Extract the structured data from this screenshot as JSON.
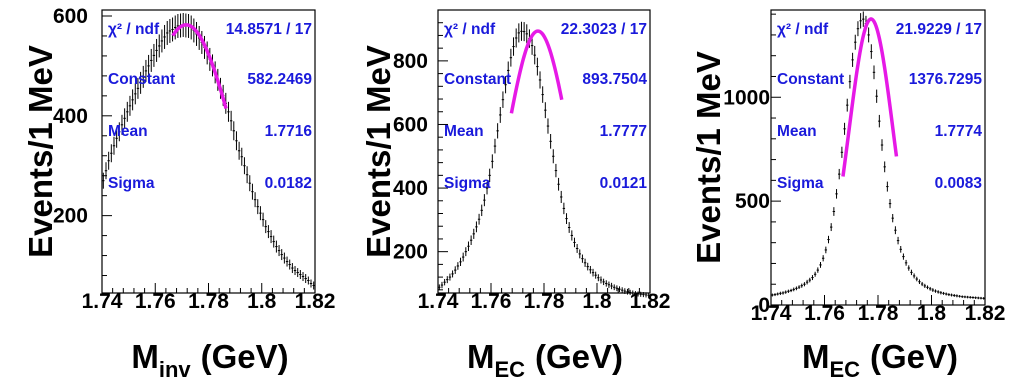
{
  "colors": {
    "fit": "#e619e6",
    "stats": "#1a1adb",
    "data": "#000000",
    "frame": "#000000"
  },
  "chart_data": [
    {
      "type": "scatter",
      "xlabel": "M",
      "xlabel_sub": "inv",
      "xlabel_unit": "(GeV)",
      "ylabel": "Events/1 MeV",
      "xlim": [
        1.74,
        1.82
      ],
      "ylim": [
        45,
        612
      ],
      "x_ticks": [
        1.74,
        1.76,
        1.78,
        1.8,
        1.82
      ],
      "x_tick_labels": [
        "1.74",
        "1.76",
        "1.78",
        "1.8",
        "1.82"
      ],
      "y_ticks": [
        200,
        400,
        600
      ],
      "y_tick_labels": [
        "200",
        "400",
        "600"
      ],
      "fit": {
        "function": "gaus",
        "constant": 582.2469,
        "mean": 1.7716,
        "sigma": 0.0182,
        "range": [
          1.7666,
          1.7866
        ]
      },
      "stats": [
        {
          "name": "χ² / ndf",
          "value": "14.8571 / 17"
        },
        {
          "name": "Constant",
          "value": "582.2469"
        },
        {
          "name": "Mean",
          "value": "1.7716"
        },
        {
          "name": "Sigma",
          "value": "0.0182"
        }
      ],
      "points": {
        "x": [
          1.7405,
          1.7415,
          1.7425,
          1.7435,
          1.7445,
          1.7455,
          1.7465,
          1.7475,
          1.7485,
          1.7495,
          1.7505,
          1.7515,
          1.7525,
          1.7535,
          1.7545,
          1.7555,
          1.7565,
          1.7575,
          1.7585,
          1.7595,
          1.7605,
          1.7615,
          1.7625,
          1.7635,
          1.7645,
          1.7655,
          1.7665,
          1.7675,
          1.7685,
          1.7695,
          1.7705,
          1.7715,
          1.7725,
          1.7735,
          1.7745,
          1.7755,
          1.7765,
          1.7775,
          1.7785,
          1.7795,
          1.7805,
          1.7815,
          1.7825,
          1.7835,
          1.7845,
          1.7855,
          1.7865,
          1.7875,
          1.7885,
          1.7895,
          1.7905,
          1.7915,
          1.7925,
          1.7935,
          1.7945,
          1.7955,
          1.7965,
          1.7975,
          1.7985,
          1.7995,
          1.8005,
          1.8015,
          1.8025,
          1.8035,
          1.8045,
          1.8055,
          1.8065,
          1.8075,
          1.8085,
          1.8095,
          1.8105,
          1.8115,
          1.8125,
          1.8135,
          1.8145,
          1.8155,
          1.8165,
          1.8175,
          1.8185,
          1.8195
        ],
        "y": [
          270,
          290,
          310,
          325,
          340,
          355,
          368,
          382,
          395,
          408,
          420,
          432,
          444,
          455,
          466,
          478,
          490,
          500,
          511,
          521,
          531,
          540,
          550,
          558,
          566,
          570,
          573,
          577,
          580,
          581,
          582,
          581,
          580,
          577,
          571,
          564,
          556,
          547,
          537,
          526,
          513,
          501,
          487,
          472,
          455,
          441,
          425,
          408,
          390,
          370,
          350,
          330,
          318,
          300,
          282,
          265,
          248,
          232,
          218,
          205,
          192,
          178,
          168,
          158,
          148,
          138,
          130,
          122,
          115,
          108,
          102,
          95,
          90,
          86,
          82,
          78,
          74,
          70,
          64,
          60
        ],
        "yerr": [
          16,
          17,
          18,
          18,
          18,
          19,
          19,
          20,
          20,
          20,
          20,
          21,
          21,
          21,
          22,
          22,
          22,
          22,
          23,
          23,
          23,
          23,
          23,
          24,
          24,
          24,
          24,
          24,
          24,
          24,
          24,
          24,
          24,
          24,
          24,
          24,
          24,
          23,
          23,
          23,
          23,
          22,
          22,
          22,
          21,
          21,
          21,
          20,
          20,
          19,
          19,
          18,
          18,
          17,
          17,
          16,
          16,
          15,
          15,
          14,
          14,
          13,
          13,
          13,
          12,
          12,
          11,
          11,
          11,
          10,
          10,
          10,
          9,
          9,
          9,
          9,
          9,
          8,
          8,
          8
        ]
      }
    },
    {
      "type": "scatter",
      "xlabel": "M",
      "xlabel_sub": "EC",
      "xlabel_unit": "(GeV)",
      "ylabel": "Events/1 MeV",
      "xlim": [
        1.74,
        1.82
      ],
      "ylim": [
        70,
        960
      ],
      "x_ticks": [
        1.74,
        1.76,
        1.78,
        1.8,
        1.82
      ],
      "x_tick_labels": [
        "1.74",
        "1.76",
        "1.78",
        "1.8",
        "1.82"
      ],
      "y_ticks": [
        200,
        400,
        600,
        800
      ],
      "y_tick_labels": [
        "200",
        "400",
        "600",
        "800"
      ],
      "fit": {
        "function": "gaus",
        "constant": 893.7504,
        "mean": 1.7777,
        "sigma": 0.0121,
        "range": [
          1.7677,
          1.7867
        ]
      },
      "stats": [
        {
          "name": "χ² / ndf",
          "value": "22.3023 / 17"
        },
        {
          "name": "Constant",
          "value": "893.7504"
        },
        {
          "name": "Mean",
          "value": "1.7777"
        },
        {
          "name": "Sigma",
          "value": "0.0121"
        }
      ],
      "points": {
        "x": [
          1.7405,
          1.7415,
          1.7425,
          1.7435,
          1.7445,
          1.7455,
          1.7465,
          1.7475,
          1.7485,
          1.7495,
          1.7505,
          1.7515,
          1.7525,
          1.7535,
          1.7545,
          1.7555,
          1.7565,
          1.7575,
          1.7585,
          1.7595,
          1.7605,
          1.7615,
          1.7625,
          1.7635,
          1.7645,
          1.7655,
          1.7665,
          1.7675,
          1.7685,
          1.7695,
          1.7705,
          1.7715,
          1.7725,
          1.7735,
          1.7745,
          1.7755,
          1.7765,
          1.7775,
          1.7785,
          1.7795,
          1.7805,
          1.7815,
          1.7825,
          1.7835,
          1.7845,
          1.7855,
          1.7865,
          1.7875,
          1.7885,
          1.7895,
          1.7905,
          1.7915,
          1.7925,
          1.7935,
          1.7945,
          1.7955,
          1.7965,
          1.7975,
          1.7985,
          1.7995,
          1.8005,
          1.8015,
          1.8025,
          1.8035,
          1.8045,
          1.8055,
          1.8065,
          1.8075,
          1.8085,
          1.8095,
          1.8105,
          1.8115,
          1.8125,
          1.8135,
          1.8145,
          1.8155,
          1.8165,
          1.8175,
          1.8185,
          1.8195
        ],
        "y": [
          88,
          95,
          104,
          112,
          120,
          130,
          142,
          155,
          168,
          183,
          200,
          217,
          236,
          256,
          278,
          302,
          330,
          362,
          400,
          440,
          484,
          532,
          580,
          630,
          678,
          725,
          770,
          810,
          845,
          872,
          888,
          893,
          892,
          885,
          870,
          848,
          818,
          782,
          740,
          694,
          645,
          595,
          547,
          500,
          455,
          412,
          372,
          336,
          304,
          276,
          251,
          229,
          210,
          193,
          178,
          165,
          153,
          143,
          134,
          126,
          118,
          111,
          105,
          100,
          96,
          92,
          88,
          85,
          82,
          79,
          76,
          74,
          72,
          70,
          68,
          67,
          66,
          65,
          64,
          63
        ],
        "yerr": [
          9,
          10,
          10,
          11,
          11,
          11,
          12,
          12,
          13,
          14,
          14,
          15,
          15,
          16,
          17,
          17,
          18,
          19,
          20,
          21,
          22,
          23,
          24,
          25,
          26,
          27,
          28,
          28,
          29,
          30,
          30,
          30,
          30,
          30,
          29,
          29,
          29,
          28,
          27,
          26,
          25,
          24,
          23,
          22,
          21,
          20,
          19,
          18,
          17,
          17,
          16,
          15,
          14,
          14,
          13,
          13,
          12,
          12,
          12,
          11,
          11,
          11,
          10,
          10,
          10,
          10,
          9,
          9,
          9,
          9,
          9,
          9,
          8,
          8,
          8,
          8,
          8,
          8,
          8,
          8
        ]
      }
    },
    {
      "type": "scatter",
      "xlabel": "M",
      "xlabel_sub": "EC",
      "xlabel_unit": "(GeV)",
      "ylabel": "Events/1 MeV",
      "xlim": [
        1.74,
        1.82
      ],
      "ylim": [
        0,
        1420
      ],
      "x_ticks": [
        1.74,
        1.76,
        1.78,
        1.8,
        1.82
      ],
      "x_tick_labels": [
        "1.74",
        "1.76",
        "1.78",
        "1.8",
        "1.82"
      ],
      "y_ticks": [
        0,
        500,
        1000
      ],
      "y_tick_labels": [
        "0",
        "500",
        "1000"
      ],
      "fit": {
        "function": "gaus",
        "constant": 1376.7295,
        "mean": 1.7774,
        "sigma": 0.0083,
        "range": [
          1.7669,
          1.7869
        ]
      },
      "stats": [
        {
          "name": "χ² / ndf",
          "value": "21.9229 / 17"
        },
        {
          "name": "Constant",
          "value": "1376.7295"
        },
        {
          "name": "Mean",
          "value": "1.7774"
        },
        {
          "name": "Sigma",
          "value": "0.0083"
        }
      ],
      "points": {
        "x": [
          1.7405,
          1.7415,
          1.7425,
          1.7435,
          1.7445,
          1.7455,
          1.7465,
          1.7475,
          1.7485,
          1.7495,
          1.7505,
          1.7515,
          1.7525,
          1.7535,
          1.7545,
          1.7555,
          1.7565,
          1.7575,
          1.7585,
          1.7595,
          1.7605,
          1.7615,
          1.7625,
          1.7635,
          1.7645,
          1.7655,
          1.7665,
          1.7675,
          1.7685,
          1.7695,
          1.7705,
          1.7715,
          1.7725,
          1.7735,
          1.7745,
          1.7755,
          1.7765,
          1.7775,
          1.7785,
          1.7795,
          1.7805,
          1.7815,
          1.7825,
          1.7835,
          1.7845,
          1.7855,
          1.7865,
          1.7875,
          1.7885,
          1.7895,
          1.7905,
          1.7915,
          1.7925,
          1.7935,
          1.7945,
          1.7955,
          1.7965,
          1.7975,
          1.7985,
          1.7995,
          1.8005,
          1.8015,
          1.8025,
          1.8035,
          1.8045,
          1.8055,
          1.8065,
          1.8075,
          1.8085,
          1.8095,
          1.8105,
          1.8115,
          1.8125,
          1.8135,
          1.8145,
          1.8155,
          1.8165,
          1.8175,
          1.8185,
          1.8195
        ],
        "y": [
          48,
          50,
          53,
          56,
          58,
          62,
          66,
          70,
          75,
          80,
          86,
          93,
          100,
          110,
          120,
          132,
          148,
          168,
          193,
          225,
          265,
          315,
          375,
          450,
          535,
          630,
          735,
          848,
          962,
          1075,
          1180,
          1265,
          1330,
          1368,
          1376,
          1355,
          1300,
          1220,
          1120,
          1005,
          885,
          770,
          665,
          570,
          488,
          418,
          360,
          310,
          268,
          233,
          203,
          178,
          157,
          140,
          125,
          112,
          101,
          92,
          85,
          78,
          72,
          67,
          63,
          59,
          56,
          53,
          50,
          48,
          46,
          44,
          42,
          40,
          39,
          38,
          37,
          36,
          35,
          34,
          33,
          32
        ],
        "yerr": [
          7,
          7,
          7,
          8,
          8,
          8,
          8,
          8,
          9,
          9,
          9,
          10,
          10,
          11,
          11,
          12,
          12,
          13,
          14,
          15,
          16,
          18,
          19,
          21,
          23,
          25,
          27,
          29,
          31,
          33,
          34,
          36,
          36,
          37,
          37,
          37,
          36,
          35,
          33,
          32,
          30,
          28,
          26,
          24,
          22,
          20,
          19,
          18,
          16,
          15,
          14,
          13,
          13,
          12,
          11,
          11,
          10,
          10,
          9,
          9,
          9,
          8,
          8,
          8,
          7,
          7,
          7,
          7,
          7,
          7,
          6,
          6,
          6,
          6,
          6,
          6,
          6,
          6,
          6,
          6
        ]
      }
    }
  ]
}
